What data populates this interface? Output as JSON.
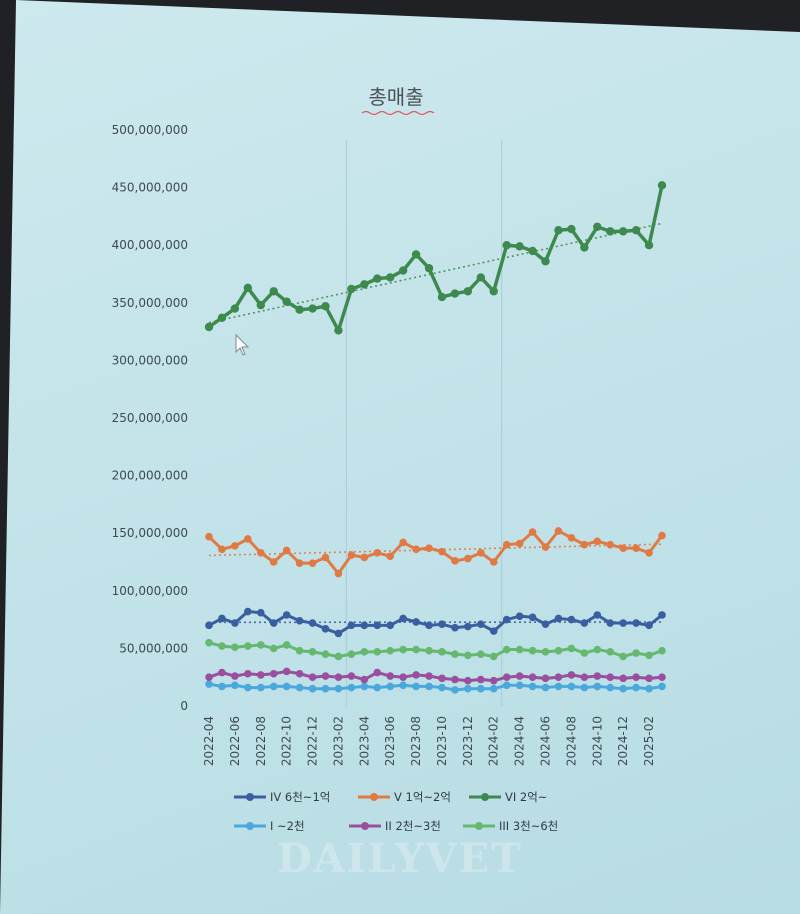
{
  "chart_data": {
    "type": "line",
    "title": "총매출",
    "xlabel": "",
    "ylabel": "",
    "ylim": [
      0,
      500000000
    ],
    "yticks": [
      0,
      50000000,
      100000000,
      150000000,
      200000000,
      250000000,
      300000000,
      350000000,
      400000000,
      450000000,
      500000000
    ],
    "ytick_labels": [
      "0",
      "50,000,000",
      "100,000,000",
      "150,000,000",
      "200,000,000",
      "250,000,000",
      "300,000,000",
      "350,000,000",
      "400,000,000",
      "450,000,000",
      "500,000,000"
    ],
    "grid": false,
    "legend_position": "bottom",
    "x": [
      "2022-04",
      "2022-05",
      "2022-06",
      "2022-07",
      "2022-08",
      "2022-09",
      "2022-10",
      "2022-11",
      "2022-12",
      "2023-01",
      "2023-02",
      "2023-03",
      "2023-04",
      "2023-05",
      "2023-06",
      "2023-07",
      "2023-08",
      "2023-09",
      "2023-10",
      "2023-11",
      "2023-12",
      "2024-01",
      "2024-02",
      "2024-03",
      "2024-04",
      "2024-05",
      "2024-06",
      "2024-07",
      "2024-08",
      "2024-09",
      "2024-10",
      "2024-11",
      "2024-12",
      "2025-01",
      "2025-02",
      "2025-03"
    ],
    "x_tick_labels": [
      "2022-04",
      "2022-06",
      "2022-08",
      "2022-10",
      "2022-12",
      "2023-02",
      "2023-04",
      "2023-06",
      "2023-08",
      "2023-10",
      "2023-12",
      "2024-02",
      "2024-04",
      "2024-06",
      "2024-08",
      "2024-10",
      "2024-12",
      "2025-02"
    ],
    "series": [
      {
        "name": "IV 6천~1억",
        "color": "#3a5fa0",
        "trendline": true,
        "values": [
          70000000,
          76000000,
          72000000,
          82000000,
          81000000,
          72000000,
          79000000,
          74000000,
          72000000,
          67000000,
          63000000,
          70000000,
          70000000,
          70000000,
          70000000,
          76000000,
          73000000,
          70000000,
          71000000,
          68000000,
          69000000,
          71000000,
          65000000,
          75000000,
          78000000,
          77000000,
          71000000,
          76000000,
          75000000,
          72000000,
          79000000,
          72000000,
          72000000,
          72000000,
          70000000,
          79000000
        ]
      },
      {
        "name": "V 1억~2억",
        "color": "#e07a45",
        "trendline": true,
        "values": [
          147000000,
          136000000,
          139000000,
          145000000,
          133000000,
          125000000,
          135000000,
          124000000,
          124000000,
          129000000,
          115000000,
          131000000,
          129000000,
          133000000,
          130000000,
          142000000,
          136000000,
          137000000,
          134000000,
          126000000,
          128000000,
          133000000,
          125000000,
          140000000,
          141000000,
          151000000,
          138000000,
          152000000,
          146000000,
          140000000,
          143000000,
          140000000,
          137000000,
          137000000,
          133000000,
          148000000
        ]
      },
      {
        "name": "VI 2억~",
        "color": "#3e8a4e",
        "trendline": true,
        "values": [
          329000000,
          337000000,
          345000000,
          363000000,
          348000000,
          360000000,
          351000000,
          344000000,
          345000000,
          347000000,
          326000000,
          362000000,
          366000000,
          371000000,
          372000000,
          378000000,
          392000000,
          380000000,
          355000000,
          358000000,
          360000000,
          372000000,
          360000000,
          400000000,
          399000000,
          395000000,
          386000000,
          413000000,
          414000000,
          398000000,
          416000000,
          412000000,
          412000000,
          413000000,
          400000000,
          452000000
        ]
      },
      {
        "name": "I ~2천",
        "color": "#4aa8dc",
        "trendline": false,
        "values": [
          19000000,
          17000000,
          18000000,
          16000000,
          16000000,
          17000000,
          17000000,
          16000000,
          15000000,
          15000000,
          15000000,
          16000000,
          17000000,
          16000000,
          17000000,
          18000000,
          17000000,
          17000000,
          16000000,
          14000000,
          15000000,
          15000000,
          15000000,
          18000000,
          18000000,
          17000000,
          16000000,
          17000000,
          17000000,
          16000000,
          17000000,
          16000000,
          15000000,
          16000000,
          15000000,
          17000000
        ]
      },
      {
        "name": "II 2천~3천",
        "color": "#9a4f9e",
        "trendline": false,
        "values": [
          25000000,
          29000000,
          26000000,
          28000000,
          27000000,
          28000000,
          30000000,
          28000000,
          25000000,
          26000000,
          25000000,
          26000000,
          23000000,
          29000000,
          26000000,
          25000000,
          27000000,
          26000000,
          24000000,
          23000000,
          22000000,
          23000000,
          22000000,
          25000000,
          26000000,
          25000000,
          24000000,
          25000000,
          27000000,
          25000000,
          26000000,
          25000000,
          24000000,
          25000000,
          24000000,
          25000000
        ]
      },
      {
        "name": "III 3천~6천",
        "color": "#66b870",
        "trendline": false,
        "values": [
          55000000,
          52000000,
          51000000,
          52000000,
          53000000,
          50000000,
          53000000,
          48000000,
          47000000,
          45000000,
          43000000,
          45000000,
          47000000,
          47000000,
          48000000,
          49000000,
          49000000,
          48000000,
          47000000,
          45000000,
          44000000,
          45000000,
          43000000,
          49000000,
          49000000,
          48000000,
          47000000,
          48000000,
          50000000,
          46000000,
          49000000,
          47000000,
          43000000,
          46000000,
          44000000,
          48000000
        ]
      }
    ]
  },
  "watermark": "DAILYVET"
}
